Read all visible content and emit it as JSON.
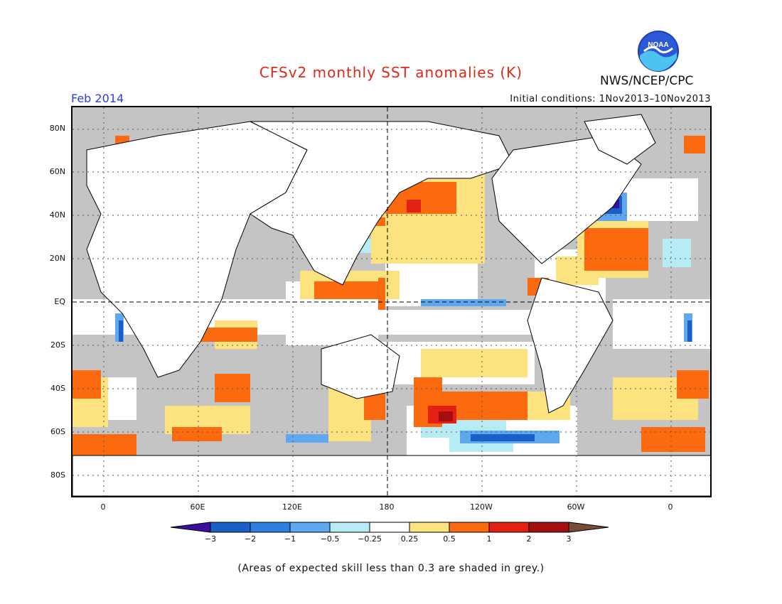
{
  "title": "CFSv2 monthly SST anomalies (K)",
  "agency": "NWS/NCEP/CPC",
  "logo_text": "NOAA",
  "month": "Feb 2014",
  "initial_conditions": "Initial conditions: 1Nov2013–10Nov2013",
  "y_ticks": [
    "80N",
    "60N",
    "40N",
    "20N",
    "EQ",
    "20S",
    "40S",
    "60S",
    "80S"
  ],
  "x_ticks": [
    "0",
    "60E",
    "120E",
    "180",
    "120W",
    "60W",
    "0"
  ],
  "colorbar": {
    "labels": [
      "−3",
      "−2",
      "−1",
      "−0.5",
      "−0.25",
      "0.25",
      "0.5",
      "1",
      "2",
      "3"
    ],
    "colors": [
      "#3a0fa0",
      "#1a5ec8",
      "#2f7fe0",
      "#5fa8f0",
      "#b8ecf4",
      "#ffffff",
      "#fde280",
      "#fb6a0f",
      "#e32012",
      "#a50e0e",
      "#7a4a38"
    ]
  },
  "note": "(Areas of expected skill less than 0.3 are shaded in grey.)",
  "colors": {
    "grey": "#c4c4c4",
    "land": "#ffffff",
    "title": "#e0281a",
    "month": "#2d3de0"
  }
}
